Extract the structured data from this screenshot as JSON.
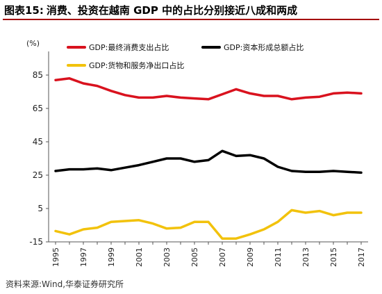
{
  "header": {
    "figure_no": "图表15:",
    "title": "消费、投资在越南 GDP 中的占比分别接近八成和两成"
  },
  "source": "资料来源:Wind,华泰证券研究所",
  "chart_data": {
    "type": "line",
    "unit_label": "(%)",
    "x": [
      1995,
      1996,
      1997,
      1998,
      1999,
      2000,
      2001,
      2002,
      2003,
      2004,
      2005,
      2006,
      2007,
      2008,
      2009,
      2010,
      2011,
      2012,
      2013,
      2014,
      2015,
      2016,
      2017
    ],
    "x_tick_labels": [
      "1995",
      "1997",
      "1999",
      "2001",
      "2003",
      "2005",
      "2007",
      "2009",
      "2011",
      "2013",
      "2015",
      "2017"
    ],
    "y_ticks": [
      85,
      65,
      45,
      25,
      5,
      -15
    ],
    "ylim": [
      -15,
      95
    ],
    "grid": false,
    "legend_placement": "top",
    "series": [
      {
        "name": "GDP:最终消费支出占比",
        "color": "#d9121e",
        "values": [
          82,
          83,
          80,
          78.5,
          75.5,
          73,
          71.5,
          71.5,
          72.5,
          71.5,
          71,
          70.5,
          73.5,
          76.5,
          74,
          72.5,
          72.5,
          70.5,
          71.5,
          72,
          74,
          74.5,
          74
        ]
      },
      {
        "name": "GDP:资本形成总额占比",
        "color": "#000000",
        "values": [
          27.5,
          28.5,
          28.5,
          29,
          28,
          29.5,
          31,
          33,
          35,
          35,
          33,
          34,
          39.5,
          36.5,
          37,
          35,
          30,
          27.5,
          27,
          27,
          27.5,
          27,
          26.5
        ]
      },
      {
        "name": "GDP:货物和服务净出口占比",
        "color": "#f2c20c",
        "values": [
          -8.5,
          -10.5,
          -7.5,
          -6.5,
          -3,
          -2.5,
          -2,
          -4,
          -7,
          -6.5,
          -3,
          -3,
          -13,
          -13,
          -10.5,
          -7.5,
          -3,
          4,
          2.5,
          3.5,
          1,
          2.5,
          2.5
        ]
      }
    ]
  }
}
